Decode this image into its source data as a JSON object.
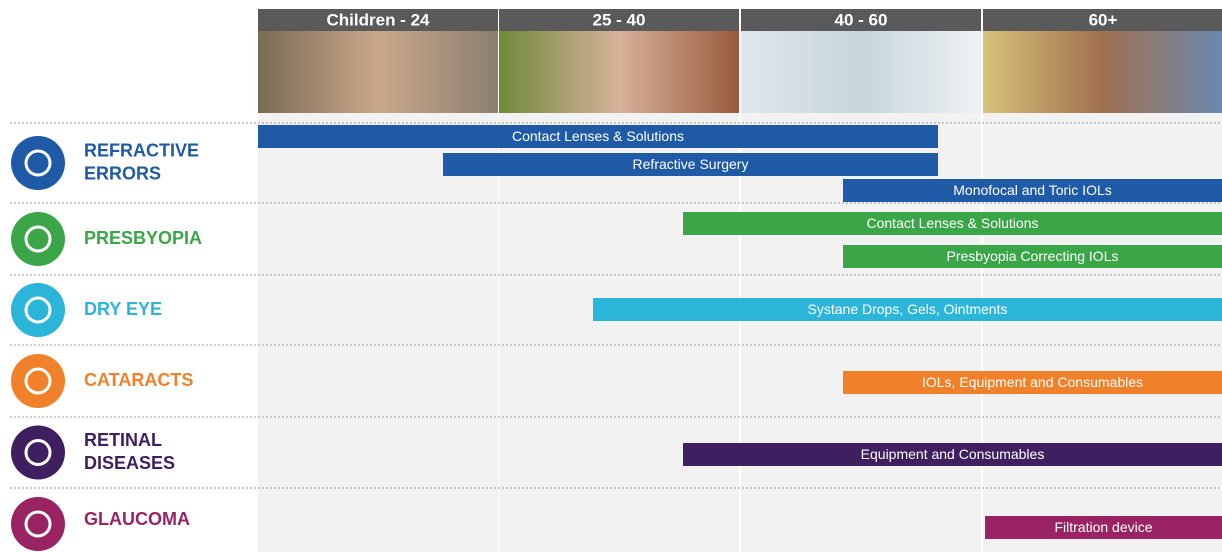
{
  "age_groups": [
    "Children - 24",
    "25 - 40",
    "40 - 60",
    "60+"
  ],
  "conditions": [
    {
      "name": [
        "REFRACTIVE",
        "ERRORS"
      ],
      "color": "#1f5aa6",
      "bars": [
        "Contact Lenses & Solutions",
        "Refractive Surgery",
        "Monofocal and Toric IOLs"
      ]
    },
    {
      "name": [
        "PRESBYOPIA"
      ],
      "color": "#3aa648",
      "bars": [
        "Contact Lenses & Solutions",
        "Presbyopia Correcting IOLs"
      ]
    },
    {
      "name": [
        "DRY EYE"
      ],
      "color": "#2bb5d8",
      "bars": [
        "Systane Drops, Gels, Ointments"
      ]
    },
    {
      "name": [
        "CATARACTS"
      ],
      "color": "#f0812a",
      "bars": [
        "IOLs, Equipment and Consumables"
      ]
    },
    {
      "name": [
        "RETINAL",
        "DISEASES"
      ],
      "color": "#3f1f5f",
      "bars": [
        "Equipment and Consumables"
      ]
    },
    {
      "name": [
        "GLAUCOMA"
      ],
      "color": "#9a2463",
      "bars": [
        "Filtration device"
      ]
    }
  ]
}
